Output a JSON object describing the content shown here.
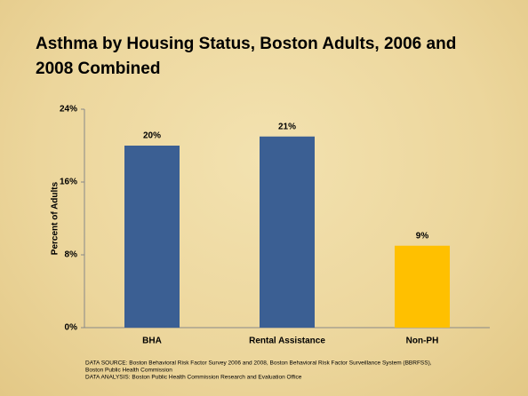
{
  "chart_data": {
    "type": "bar",
    "title": "Asthma by Housing Status, Boston Adults, 2006 and 2008 Combined",
    "y_label": "Percent of Adults",
    "categories": [
      "BHA",
      "Rental Assistance",
      "Non-PH"
    ],
    "values": [
      20,
      21,
      9
    ],
    "value_labels": [
      "20%",
      "21%",
      "9%"
    ],
    "colors": [
      "#3b5f93",
      "#3b5f93",
      "#ffc000"
    ],
    "ylim": [
      0,
      24
    ],
    "yticks": [
      {
        "value": 0,
        "label": "0%"
      },
      {
        "value": 8,
        "label": "8%"
      },
      {
        "value": 16,
        "label": "16%"
      },
      {
        "value": 24,
        "label": "24%"
      }
    ],
    "notes": [
      "DATA SOURCE: Boston Behavioral Risk Factor Survey 2006 and 2008, Boston Behavioral Risk Factor Surveillance System (BBRFSS),",
      "Boston Public Health Commission",
      "DATA ANALYSIS:  Boston Public Health Commission Research and Evaluation Office"
    ]
  }
}
